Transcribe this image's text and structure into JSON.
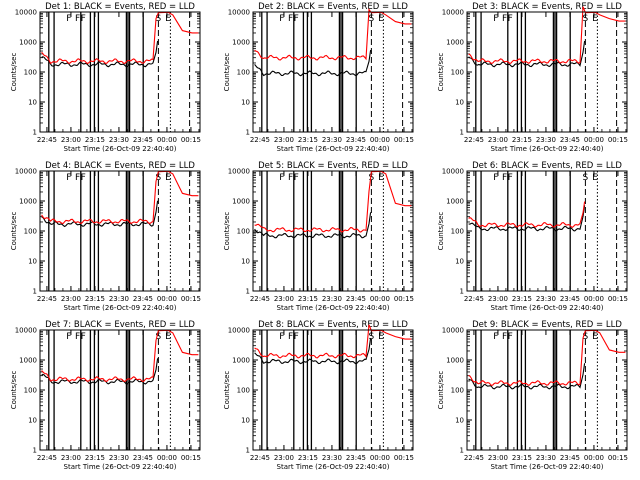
{
  "figure": {
    "panels_title_template": "Det {n}: BLACK = Events, RED = LLD"
  },
  "colors": {
    "events": "#000000",
    "lld": "#ff0000",
    "frame": "#000000"
  },
  "chart_data": [
    {
      "type": "line",
      "title": "Det 1: BLACK = Events, RED = LLD",
      "xlabel": "Start Time (26-Oct-09 22:40:40)",
      "ylabel": "Counts/sec",
      "y_scale": "log",
      "ylim": [
        1,
        10000
      ],
      "x_tick_labels": [
        "22:45",
        "23:00",
        "23:15",
        "23:30",
        "23:45",
        "00:00",
        "00:15"
      ],
      "y_tick_labels": [
        "1",
        "10",
        "100",
        "1000",
        "10000"
      ],
      "flags": [
        "F",
        "F",
        "F",
        "S",
        "E"
      ],
      "series": [
        {
          "name": "",
          "color": "black",
          "base": 180,
          "end_level": null
        },
        {
          "name": "",
          "color": "red",
          "base": 230,
          "end_level": 2000
        }
      ]
    },
    {
      "type": "line",
      "title": "Det 2: BLACK = Events, RED = LLD",
      "xlabel": "Start Time (26-Oct-09 22:40:40)",
      "ylabel": "Counts/sec",
      "y_scale": "log",
      "ylim": [
        1,
        10000
      ],
      "x_tick_labels": [
        "22:45",
        "23:00",
        "23:15",
        "23:30",
        "23:45",
        "00:00",
        "00:15"
      ],
      "y_tick_labels": [
        "1",
        "10",
        "100",
        "1000",
        "10000"
      ],
      "flags": [
        "F",
        "F",
        "F",
        "S",
        "E"
      ],
      "series": [
        {
          "name": "",
          "color": "black",
          "base": 90,
          "end_level": null
        },
        {
          "name": "",
          "color": "red",
          "base": 300,
          "end_level": 4000
        }
      ]
    },
    {
      "type": "line",
      "title": "Det 3: BLACK = Events, RED = LLD",
      "xlabel": "Start Time (26-Oct-09 22:40:40)",
      "ylabel": "Counts/sec",
      "y_scale": "log",
      "ylim": [
        1,
        10000
      ],
      "x_tick_labels": [
        "22:45",
        "23:00",
        "23:15",
        "23:30",
        "23:45",
        "00:00",
        "00:15"
      ],
      "y_tick_labels": [
        "1",
        "10",
        "100",
        "1000",
        "10000"
      ],
      "flags": [
        "F",
        "F",
        "F",
        "S",
        "E"
      ],
      "series": [
        {
          "name": "",
          "color": "black",
          "base": 180,
          "end_level": null
        },
        {
          "name": "",
          "color": "red",
          "base": 230,
          "end_level": 5000
        }
      ]
    },
    {
      "type": "line",
      "title": "Det 4: BLACK = Events, RED = LLD",
      "xlabel": "Start Time (26-Oct-09 22:40:40)",
      "ylabel": "Counts/sec",
      "y_scale": "log",
      "ylim": [
        1,
        10000
      ],
      "x_tick_labels": [
        "22:45",
        "23:00",
        "23:15",
        "23:30",
        "23:45",
        "00:00",
        "00:15"
      ],
      "y_tick_labels": [
        "1",
        "10",
        "100",
        "1000",
        "10000"
      ],
      "flags": [
        "F",
        "F",
        "F",
        "S",
        "E"
      ],
      "series": [
        {
          "name": "",
          "color": "black",
          "base": 170,
          "end_level": null
        },
        {
          "name": "",
          "color": "red",
          "base": 210,
          "end_level": 1500
        }
      ]
    },
    {
      "type": "line",
      "title": "Det 5: BLACK = Events, RED = LLD",
      "xlabel": "Start Time (26-Oct-09 22:40:40)",
      "ylabel": "Counts/sec",
      "y_scale": "log",
      "ylim": [
        1,
        10000
      ],
      "x_tick_labels": [
        "22:45",
        "23:00",
        "23:15",
        "23:30",
        "23:45",
        "00:00",
        "00:15"
      ],
      "y_tick_labels": [
        "1",
        "10",
        "100",
        "1000",
        "10000"
      ],
      "flags": [
        "F",
        "F",
        "F",
        "S",
        "E"
      ],
      "series": [
        {
          "name": "",
          "color": "black",
          "base": 70,
          "end_level": null
        },
        {
          "name": "",
          "color": "red",
          "base": 110,
          "end_level": 700
        }
      ]
    },
    {
      "type": "line",
      "title": "Det 6: BLACK = Events, RED = LLD",
      "xlabel": "Start Time (26-Oct-09 22:40:40)",
      "ylabel": "Counts/sec",
      "y_scale": "log",
      "ylim": [
        1,
        10000
      ],
      "x_tick_labels": [
        "22:45",
        "23:00",
        "23:15",
        "23:30",
        "23:45",
        "00:00",
        "00:15"
      ],
      "y_tick_labels": [
        "1",
        "10",
        "100",
        "1000",
        "10000"
      ],
      "flags": [
        "F",
        "F",
        "F",
        "S",
        "E"
      ],
      "series": [
        {
          "name": "",
          "color": "black",
          "base": 120,
          "end_level": null
        },
        {
          "name": "",
          "color": "red",
          "base": 160,
          "end_level": null
        }
      ]
    },
    {
      "type": "line",
      "title": "Det 7: BLACK = Events, RED = LLD",
      "xlabel": "Start Time (26-Oct-09 22:40:40)",
      "ylabel": "Counts/sec",
      "y_scale": "log",
      "ylim": [
        1,
        10000
      ],
      "x_tick_labels": [
        "22:45",
        "23:00",
        "23:15",
        "23:30",
        "23:45",
        "00:00",
        "00:15"
      ],
      "y_tick_labels": [
        "1",
        "10",
        "100",
        "1000",
        "10000"
      ],
      "flags": [
        "F",
        "F",
        "F",
        "S",
        "E"
      ],
      "series": [
        {
          "name": "",
          "color": "black",
          "base": 190,
          "end_level": null
        },
        {
          "name": "",
          "color": "red",
          "base": 230,
          "end_level": 1500
        }
      ]
    },
    {
      "type": "line",
      "title": "Det 8: BLACK = Events, RED = LLD",
      "xlabel": "Start Time (26-Oct-09 22:40:40)",
      "ylabel": "Counts/sec",
      "y_scale": "log",
      "ylim": [
        1,
        10000
      ],
      "x_tick_labels": [
        "22:45",
        "23:00",
        "23:15",
        "23:30",
        "23:45",
        "00:00",
        "00:15"
      ],
      "y_tick_labels": [
        "1",
        "10",
        "100",
        "1000",
        "10000"
      ],
      "flags": [
        "F",
        "F",
        "F",
        "S",
        "E"
      ],
      "series": [
        {
          "name": "",
          "color": "black",
          "base": 900,
          "end_level": null
        },
        {
          "name": "",
          "color": "red",
          "base": 1400,
          "end_level": 5000
        }
      ]
    },
    {
      "type": "line",
      "title": "Det 9: BLACK = Events, RED = LLD",
      "xlabel": "Start Time (26-Oct-09 22:40:40)",
      "ylabel": "Counts/sec",
      "y_scale": "log",
      "ylim": [
        1,
        10000
      ],
      "x_tick_labels": [
        "22:45",
        "23:00",
        "23:15",
        "23:30",
        "23:45",
        "00:00",
        "00:15"
      ],
      "y_tick_labels": [
        "1",
        "10",
        "100",
        "1000",
        "10000"
      ],
      "flags": [
        "F",
        "F",
        "F",
        "S",
        "E"
      ],
      "series": [
        {
          "name": "",
          "color": "black",
          "base": 130,
          "end_level": null
        },
        {
          "name": "",
          "color": "red",
          "base": 170,
          "end_level": 1800
        }
      ]
    }
  ]
}
